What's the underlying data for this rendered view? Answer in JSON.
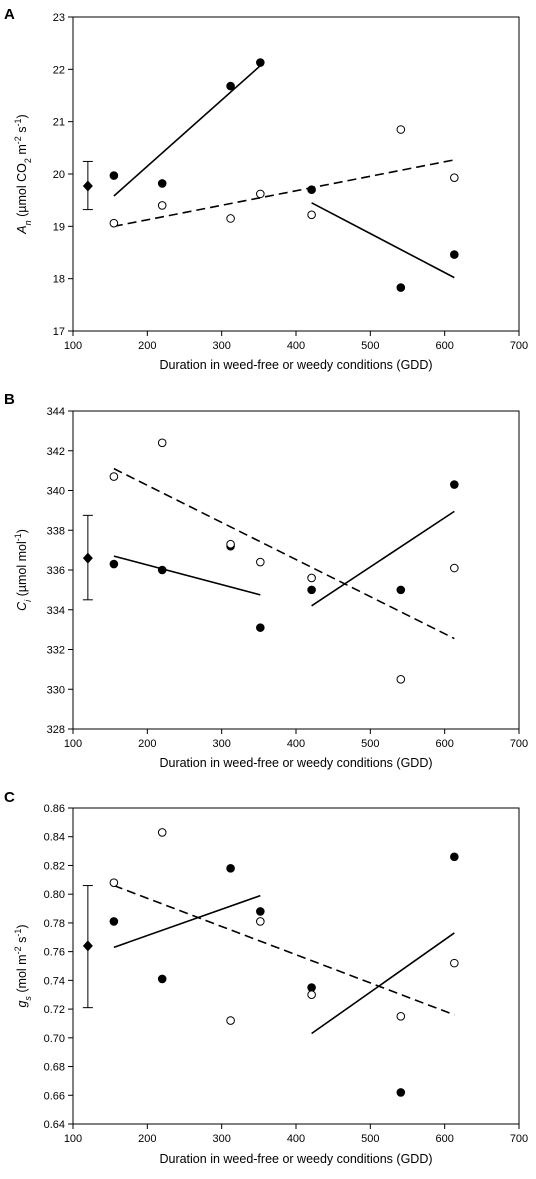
{
  "chart_data": [
    {
      "type": "scatter",
      "panel_label": "A",
      "xlabel": "Duration in weed-free or weedy conditions (GDD)",
      "ylabel_parts": [
        {
          "t": "A",
          "italic": true
        },
        {
          "t": "n",
          "italic": true,
          "sub": true
        },
        {
          "t": " (µmol CO"
        },
        {
          "t": "2",
          "sub": true
        },
        {
          "t": " m"
        },
        {
          "t": "-2",
          "sup": true
        },
        {
          "t": " s"
        },
        {
          "t": "-1",
          "sup": true
        },
        {
          "t": ")"
        }
      ],
      "xlim": [
        100,
        700
      ],
      "ylim": [
        17,
        23
      ],
      "xticks": [
        "100",
        "200",
        "300",
        "400",
        "500",
        "600",
        "700"
      ],
      "yticks": [
        "17",
        "18",
        "19",
        "20",
        "21",
        "22",
        "23"
      ],
      "series": [
        {
          "marker": "filled-circle",
          "points": [
            [
              155,
              19.97
            ],
            [
              220,
              19.82
            ],
            [
              312,
              21.68
            ],
            [
              352,
              22.13
            ],
            [
              421,
              19.7
            ],
            [
              541,
              17.83
            ],
            [
              613,
              18.46
            ]
          ]
        },
        {
          "marker": "open-circle",
          "points": [
            [
              155,
              19.06
            ],
            [
              220,
              19.4
            ],
            [
              312,
              19.15
            ],
            [
              352,
              19.62
            ],
            [
              421,
              19.22
            ],
            [
              541,
              20.85
            ],
            [
              613,
              19.93
            ]
          ]
        }
      ],
      "fits": [
        {
          "style": "solid",
          "from": [
            155,
            19.58
          ],
          "to": [
            352,
            22.07
          ]
        },
        {
          "style": "solid",
          "from": [
            421,
            19.45
          ],
          "to": [
            613,
            18.02
          ]
        },
        {
          "style": "dashed",
          "from": [
            155,
            19.0
          ],
          "to": [
            613,
            20.27
          ]
        }
      ],
      "reference": {
        "x": 120,
        "y": 19.77,
        "err_low": 19.32,
        "err_high": 20.24
      }
    },
    {
      "type": "scatter",
      "panel_label": "B",
      "xlabel": "Duration in weed-free or weedy conditions (GDD)",
      "ylabel_parts": [
        {
          "t": "C",
          "italic": true
        },
        {
          "t": "i",
          "italic": true,
          "sub": true
        },
        {
          "t": " (µmol mol"
        },
        {
          "t": "-1",
          "sup": true
        },
        {
          "t": ")"
        }
      ],
      "xlim": [
        100,
        700
      ],
      "ylim": [
        328,
        344
      ],
      "xticks": [
        "100",
        "200",
        "300",
        "400",
        "500",
        "600",
        "700"
      ],
      "yticks": [
        "328",
        "330",
        "332",
        "334",
        "336",
        "338",
        "340",
        "342",
        "344"
      ],
      "series": [
        {
          "marker": "filled-circle",
          "points": [
            [
              155,
              336.3
            ],
            [
              220,
              336.0
            ],
            [
              312,
              337.2
            ],
            [
              352,
              333.1
            ],
            [
              421,
              335.0
            ],
            [
              541,
              335.0
            ],
            [
              613,
              340.3
            ]
          ]
        },
        {
          "marker": "open-circle",
          "points": [
            [
              155,
              340.7
            ],
            [
              220,
              342.4
            ],
            [
              312,
              337.3
            ],
            [
              352,
              336.4
            ],
            [
              421,
              335.6
            ],
            [
              541,
              330.5
            ],
            [
              613,
              336.1
            ]
          ]
        }
      ],
      "fits": [
        {
          "style": "solid",
          "from": [
            155,
            336.7
          ],
          "to": [
            352,
            334.75
          ]
        },
        {
          "style": "solid",
          "from": [
            421,
            334.2
          ],
          "to": [
            613,
            338.95
          ]
        },
        {
          "style": "dashed",
          "from": [
            155,
            341.1
          ],
          "to": [
            613,
            332.55
          ]
        }
      ],
      "reference": {
        "x": 120,
        "y": 336.6,
        "err_low": 334.5,
        "err_high": 338.75
      }
    },
    {
      "type": "scatter",
      "panel_label": "C",
      "xlabel": "Duration in weed-free or weedy conditions (GDD)",
      "ylabel_parts": [
        {
          "t": "g",
          "italic": true
        },
        {
          "t": "s",
          "italic": true,
          "sub": true
        },
        {
          "t": " (mol m"
        },
        {
          "t": "-2",
          "sup": true
        },
        {
          "t": " s"
        },
        {
          "t": "-1",
          "sup": true
        },
        {
          "t": ")"
        }
      ],
      "xlim": [
        100,
        700
      ],
      "ylim": [
        0.64,
        0.86
      ],
      "xticks": [
        "100",
        "200",
        "300",
        "400",
        "500",
        "600",
        "700"
      ],
      "yticks": [
        "0.64",
        "0.66",
        "0.68",
        "0.70",
        "0.72",
        "0.74",
        "0.76",
        "0.78",
        "0.80",
        "0.82",
        "0.84",
        "0.86"
      ],
      "series": [
        {
          "marker": "filled-circle",
          "points": [
            [
              155,
              0.781
            ],
            [
              220,
              0.741
            ],
            [
              312,
              0.818
            ],
            [
              352,
              0.788
            ],
            [
              421,
              0.735
            ],
            [
              541,
              0.662
            ],
            [
              613,
              0.826
            ]
          ]
        },
        {
          "marker": "open-circle",
          "points": [
            [
              155,
              0.808
            ],
            [
              220,
              0.843
            ],
            [
              312,
              0.712
            ],
            [
              352,
              0.781
            ],
            [
              421,
              0.73
            ],
            [
              541,
              0.715
            ],
            [
              613,
              0.752
            ]
          ]
        }
      ],
      "fits": [
        {
          "style": "solid",
          "from": [
            155,
            0.763
          ],
          "to": [
            352,
            0.799
          ]
        },
        {
          "style": "solid",
          "from": [
            421,
            0.703
          ],
          "to": [
            613,
            0.773
          ]
        },
        {
          "style": "dashed",
          "from": [
            155,
            0.806
          ],
          "to": [
            613,
            0.716
          ]
        }
      ],
      "reference": {
        "x": 120,
        "y": 0.764,
        "err_low": 0.721,
        "err_high": 0.806
      }
    }
  ]
}
